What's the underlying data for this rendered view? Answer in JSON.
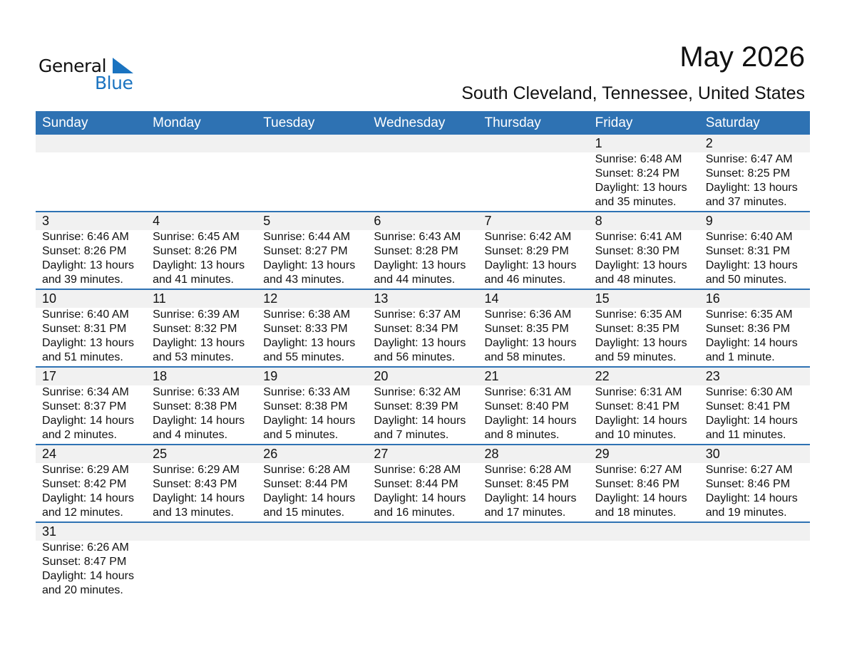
{
  "logo": {
    "text_general": "General",
    "text_blue": "Blue"
  },
  "header": {
    "title": "May 2026",
    "location": "South Cleveland, Tennessee, United States"
  },
  "colors": {
    "accent": "#2e72b3",
    "band": "#f1f1f1",
    "logo_blue": "#1a73c0"
  },
  "weekdays": [
    "Sunday",
    "Monday",
    "Tuesday",
    "Wednesday",
    "Thursday",
    "Friday",
    "Saturday"
  ],
  "weeks": [
    [
      null,
      null,
      null,
      null,
      null,
      {
        "day": "1",
        "sunrise": "Sunrise: 6:48 AM",
        "sunset": "Sunset: 8:24 PM",
        "daylight1": "Daylight: 13 hours",
        "daylight2": "and 35 minutes."
      },
      {
        "day": "2",
        "sunrise": "Sunrise: 6:47 AM",
        "sunset": "Sunset: 8:25 PM",
        "daylight1": "Daylight: 13 hours",
        "daylight2": "and 37 minutes."
      }
    ],
    [
      {
        "day": "3",
        "sunrise": "Sunrise: 6:46 AM",
        "sunset": "Sunset: 8:26 PM",
        "daylight1": "Daylight: 13 hours",
        "daylight2": "and 39 minutes."
      },
      {
        "day": "4",
        "sunrise": "Sunrise: 6:45 AM",
        "sunset": "Sunset: 8:26 PM",
        "daylight1": "Daylight: 13 hours",
        "daylight2": "and 41 minutes."
      },
      {
        "day": "5",
        "sunrise": "Sunrise: 6:44 AM",
        "sunset": "Sunset: 8:27 PM",
        "daylight1": "Daylight: 13 hours",
        "daylight2": "and 43 minutes."
      },
      {
        "day": "6",
        "sunrise": "Sunrise: 6:43 AM",
        "sunset": "Sunset: 8:28 PM",
        "daylight1": "Daylight: 13 hours",
        "daylight2": "and 44 minutes."
      },
      {
        "day": "7",
        "sunrise": "Sunrise: 6:42 AM",
        "sunset": "Sunset: 8:29 PM",
        "daylight1": "Daylight: 13 hours",
        "daylight2": "and 46 minutes."
      },
      {
        "day": "8",
        "sunrise": "Sunrise: 6:41 AM",
        "sunset": "Sunset: 8:30 PM",
        "daylight1": "Daylight: 13 hours",
        "daylight2": "and 48 minutes."
      },
      {
        "day": "9",
        "sunrise": "Sunrise: 6:40 AM",
        "sunset": "Sunset: 8:31 PM",
        "daylight1": "Daylight: 13 hours",
        "daylight2": "and 50 minutes."
      }
    ],
    [
      {
        "day": "10",
        "sunrise": "Sunrise: 6:40 AM",
        "sunset": "Sunset: 8:31 PM",
        "daylight1": "Daylight: 13 hours",
        "daylight2": "and 51 minutes."
      },
      {
        "day": "11",
        "sunrise": "Sunrise: 6:39 AM",
        "sunset": "Sunset: 8:32 PM",
        "daylight1": "Daylight: 13 hours",
        "daylight2": "and 53 minutes."
      },
      {
        "day": "12",
        "sunrise": "Sunrise: 6:38 AM",
        "sunset": "Sunset: 8:33 PM",
        "daylight1": "Daylight: 13 hours",
        "daylight2": "and 55 minutes."
      },
      {
        "day": "13",
        "sunrise": "Sunrise: 6:37 AM",
        "sunset": "Sunset: 8:34 PM",
        "daylight1": "Daylight: 13 hours",
        "daylight2": "and 56 minutes."
      },
      {
        "day": "14",
        "sunrise": "Sunrise: 6:36 AM",
        "sunset": "Sunset: 8:35 PM",
        "daylight1": "Daylight: 13 hours",
        "daylight2": "and 58 minutes."
      },
      {
        "day": "15",
        "sunrise": "Sunrise: 6:35 AM",
        "sunset": "Sunset: 8:35 PM",
        "daylight1": "Daylight: 13 hours",
        "daylight2": "and 59 minutes."
      },
      {
        "day": "16",
        "sunrise": "Sunrise: 6:35 AM",
        "sunset": "Sunset: 8:36 PM",
        "daylight1": "Daylight: 14 hours",
        "daylight2": "and 1 minute."
      }
    ],
    [
      {
        "day": "17",
        "sunrise": "Sunrise: 6:34 AM",
        "sunset": "Sunset: 8:37 PM",
        "daylight1": "Daylight: 14 hours",
        "daylight2": "and 2 minutes."
      },
      {
        "day": "18",
        "sunrise": "Sunrise: 6:33 AM",
        "sunset": "Sunset: 8:38 PM",
        "daylight1": "Daylight: 14 hours",
        "daylight2": "and 4 minutes."
      },
      {
        "day": "19",
        "sunrise": "Sunrise: 6:33 AM",
        "sunset": "Sunset: 8:38 PM",
        "daylight1": "Daylight: 14 hours",
        "daylight2": "and 5 minutes."
      },
      {
        "day": "20",
        "sunrise": "Sunrise: 6:32 AM",
        "sunset": "Sunset: 8:39 PM",
        "daylight1": "Daylight: 14 hours",
        "daylight2": "and 7 minutes."
      },
      {
        "day": "21",
        "sunrise": "Sunrise: 6:31 AM",
        "sunset": "Sunset: 8:40 PM",
        "daylight1": "Daylight: 14 hours",
        "daylight2": "and 8 minutes."
      },
      {
        "day": "22",
        "sunrise": "Sunrise: 6:31 AM",
        "sunset": "Sunset: 8:41 PM",
        "daylight1": "Daylight: 14 hours",
        "daylight2": "and 10 minutes."
      },
      {
        "day": "23",
        "sunrise": "Sunrise: 6:30 AM",
        "sunset": "Sunset: 8:41 PM",
        "daylight1": "Daylight: 14 hours",
        "daylight2": "and 11 minutes."
      }
    ],
    [
      {
        "day": "24",
        "sunrise": "Sunrise: 6:29 AM",
        "sunset": "Sunset: 8:42 PM",
        "daylight1": "Daylight: 14 hours",
        "daylight2": "and 12 minutes."
      },
      {
        "day": "25",
        "sunrise": "Sunrise: 6:29 AM",
        "sunset": "Sunset: 8:43 PM",
        "daylight1": "Daylight: 14 hours",
        "daylight2": "and 13 minutes."
      },
      {
        "day": "26",
        "sunrise": "Sunrise: 6:28 AM",
        "sunset": "Sunset: 8:44 PM",
        "daylight1": "Daylight: 14 hours",
        "daylight2": "and 15 minutes."
      },
      {
        "day": "27",
        "sunrise": "Sunrise: 6:28 AM",
        "sunset": "Sunset: 8:44 PM",
        "daylight1": "Daylight: 14 hours",
        "daylight2": "and 16 minutes."
      },
      {
        "day": "28",
        "sunrise": "Sunrise: 6:28 AM",
        "sunset": "Sunset: 8:45 PM",
        "daylight1": "Daylight: 14 hours",
        "daylight2": "and 17 minutes."
      },
      {
        "day": "29",
        "sunrise": "Sunrise: 6:27 AM",
        "sunset": "Sunset: 8:46 PM",
        "daylight1": "Daylight: 14 hours",
        "daylight2": "and 18 minutes."
      },
      {
        "day": "30",
        "sunrise": "Sunrise: 6:27 AM",
        "sunset": "Sunset: 8:46 PM",
        "daylight1": "Daylight: 14 hours",
        "daylight2": "and 19 minutes."
      }
    ],
    [
      {
        "day": "31",
        "sunrise": "Sunrise: 6:26 AM",
        "sunset": "Sunset: 8:47 PM",
        "daylight1": "Daylight: 14 hours",
        "daylight2": "and 20 minutes."
      },
      null,
      null,
      null,
      null,
      null,
      null
    ]
  ]
}
